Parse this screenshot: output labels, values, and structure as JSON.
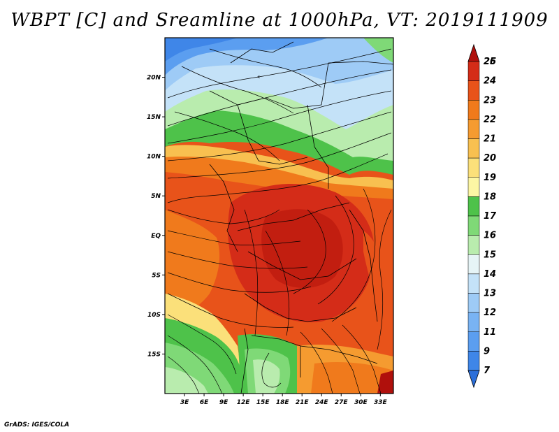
{
  "title": "WBPT [C] and Sreamline at 1000hPa, VT: 2019111909",
  "credit": "GrADS: IGES/COLA",
  "map": {
    "lon_range": [
      0,
      35
    ],
    "lat_range": [
      -20,
      25
    ],
    "lon_ticks": [
      "3E",
      "6E",
      "9E",
      "12E",
      "15E",
      "18E",
      "21E",
      "24E",
      "27E",
      "30E",
      "33E"
    ],
    "lat_ticks": [
      "20N",
      "15N",
      "10N",
      "5N",
      "EQ",
      "5S",
      "10S",
      "15S"
    ],
    "variable": "Wet-bulb potential temperature [C] with streamlines at 1000hPa"
  },
  "colorbar": {
    "levels": [
      "7",
      "9",
      "11",
      "12",
      "13",
      "14",
      "15",
      "16",
      "17",
      "18",
      "19",
      "20",
      "21",
      "22",
      "23",
      "24",
      "25",
      "26"
    ],
    "colors": [
      "#2c6fd9",
      "#3f86e8",
      "#5b9ef0",
      "#79b3f3",
      "#9ecbf6",
      "#c4e2f8",
      "#e6f4f6",
      "#b9ecae",
      "#7fd977",
      "#4ec24a",
      "#fcf6a4",
      "#fbe07a",
      "#f8c050",
      "#f59b30",
      "#f07a1c",
      "#e8531a",
      "#d42c18",
      "#b0100c"
    ]
  }
}
